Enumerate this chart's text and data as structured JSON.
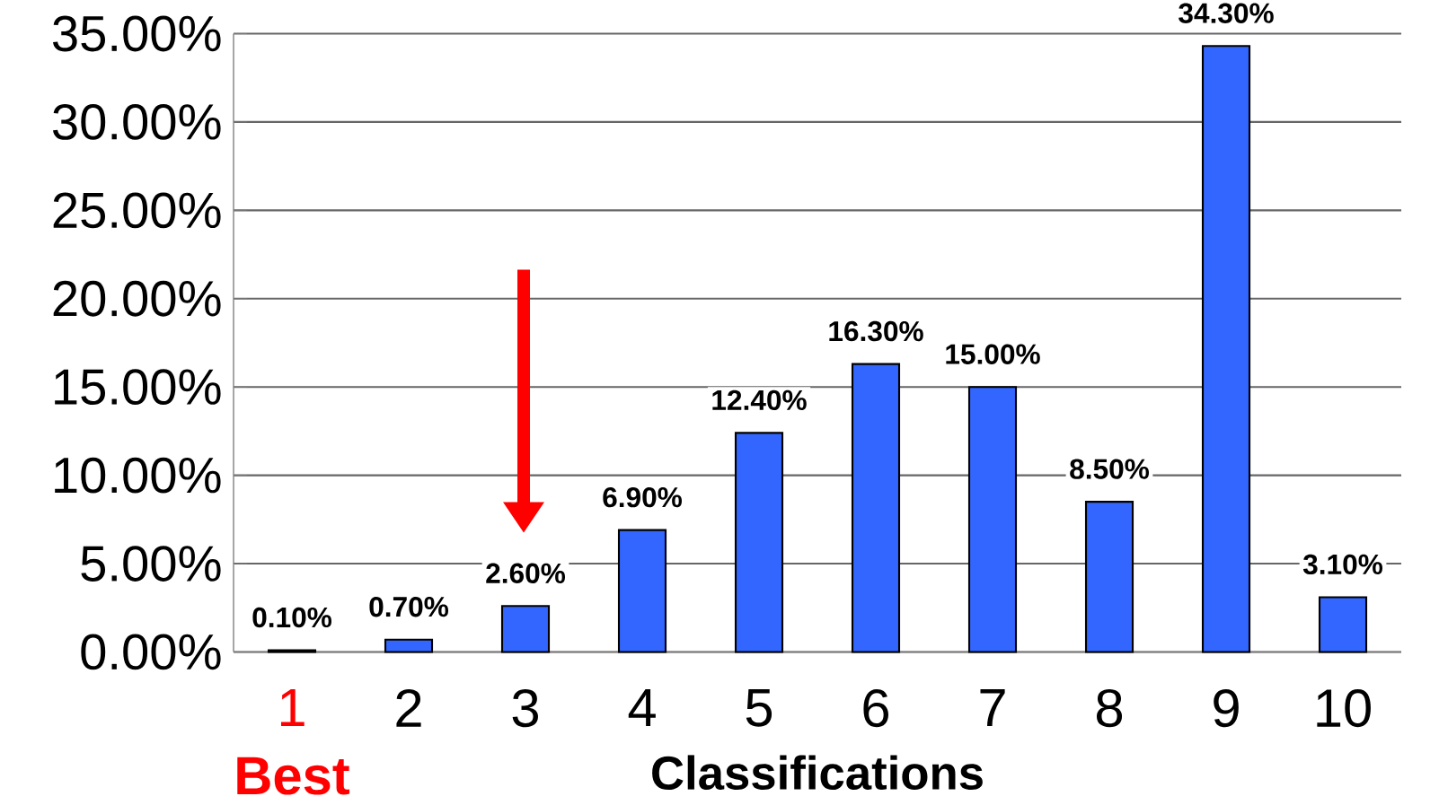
{
  "chart_data": {
    "type": "bar",
    "xlabel": "Classifications",
    "categories": [
      "1",
      "2",
      "3",
      "4",
      "5",
      "6",
      "7",
      "8",
      "9",
      "10"
    ],
    "values": [
      0.1,
      0.7,
      2.6,
      6.9,
      12.4,
      16.3,
      15.0,
      8.5,
      34.3,
      3.1
    ],
    "value_labels": [
      "0.10%",
      "0.70%",
      "2.60%",
      "6.90%",
      "12.40%",
      "16.30%",
      "15.00%",
      "8.50%",
      "34.30%",
      "3.10%"
    ],
    "color": "#3366ff",
    "ylim": [
      0,
      35
    ],
    "yticks": [
      {
        "value": 0,
        "label": "0.00%"
      },
      {
        "value": 5,
        "label": "5.00%"
      },
      {
        "value": 10,
        "label": "10.00%"
      },
      {
        "value": 15,
        "label": "15.00%"
      },
      {
        "value": 20,
        "label": "20.00%"
      },
      {
        "value": 25,
        "label": "25.00%"
      },
      {
        "value": 30,
        "label": "30.00%"
      },
      {
        "value": 35,
        "label": "35.00%"
      }
    ],
    "grid": "y",
    "annotations": [
      "Best"
    ]
  }
}
